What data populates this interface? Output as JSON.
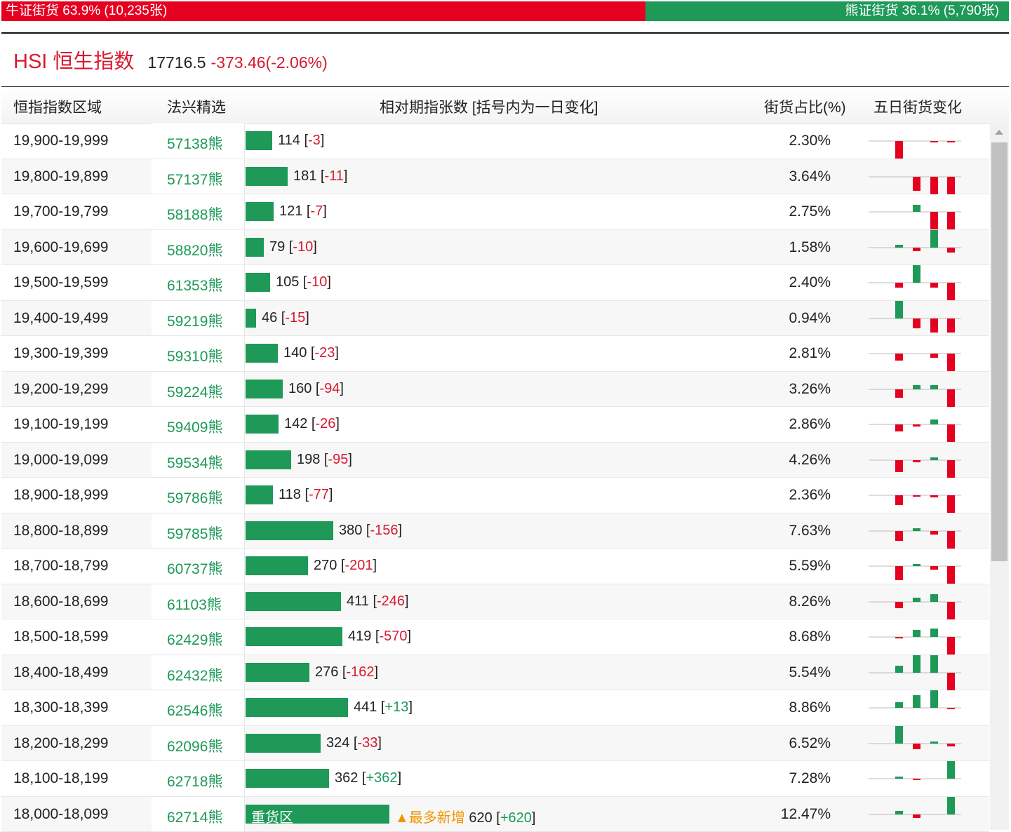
{
  "ratio": {
    "bull_label": "牛证街货 63.9% (10,235张)",
    "bear_label": "熊证街货 36.1% (5,790张)",
    "bull_pct": 63.9,
    "bull_color": "#e60020",
    "bear_color": "#1e9957"
  },
  "index": {
    "name": "HSI 恒生指数",
    "value": "17716.5",
    "change": "-373.46(-2.06%)"
  },
  "table": {
    "headers": {
      "range": "恒指指数区域",
      "pick": "法兴精选",
      "count": "相对期指张数 [括号内为一日变化]",
      "pct": "街货占比(%)",
      "five_day": "五日街货变化"
    },
    "rows": [
      {
        "range": "19,900-19,999",
        "pick": "57138熊",
        "count": "114",
        "change": "-3",
        "pct": "2.30%",
        "bar": 114,
        "spark": [
          0,
          -25,
          0,
          -2,
          -2
        ]
      },
      {
        "range": "19,800-19,899",
        "pick": "57137熊",
        "count": "181",
        "change": "-11",
        "pct": "3.64%",
        "bar": 181,
        "spark": [
          0,
          0,
          -20,
          -25,
          -25
        ]
      },
      {
        "range": "19,700-19,799",
        "pick": "58188熊",
        "count": "121",
        "change": "-7",
        "pct": "2.75%",
        "bar": 121,
        "spark": [
          0,
          0,
          10,
          -25,
          -25
        ]
      },
      {
        "range": "19,600-19,699",
        "pick": "58820熊",
        "count": "79",
        "change": "-10",
        "pct": "1.58%",
        "bar": 79,
        "spark": [
          0,
          4,
          -5,
          25,
          -7
        ]
      },
      {
        "range": "19,500-19,599",
        "pick": "61353熊",
        "count": "105",
        "change": "-10",
        "pct": "2.40%",
        "bar": 105,
        "spark": [
          0,
          -7,
          25,
          -7,
          -25
        ]
      },
      {
        "range": "19,400-19,499",
        "pick": "59219熊",
        "count": "46",
        "change": "-15",
        "pct": "0.94%",
        "bar": 46,
        "spark": [
          0,
          25,
          -14,
          -20,
          -20
        ]
      },
      {
        "range": "19,300-19,399",
        "pick": "59310熊",
        "count": "140",
        "change": "-23",
        "pct": "2.81%",
        "bar": 140,
        "spark": [
          0,
          -10,
          0,
          -6,
          -25
        ]
      },
      {
        "range": "19,200-19,299",
        "pick": "59224熊",
        "count": "160",
        "change": "-94",
        "pct": "3.26%",
        "bar": 160,
        "spark": [
          0,
          -12,
          6,
          6,
          -25
        ]
      },
      {
        "range": "19,100-19,199",
        "pick": "59409熊",
        "count": "142",
        "change": "-26",
        "pct": "2.86%",
        "bar": 142,
        "spark": [
          0,
          -10,
          -3,
          7,
          -25
        ]
      },
      {
        "range": "19,000-19,099",
        "pick": "59534熊",
        "count": "198",
        "change": "-95",
        "pct": "4.26%",
        "bar": 198,
        "spark": [
          0,
          -17,
          -3,
          4,
          -25
        ]
      },
      {
        "range": "18,900-18,999",
        "pick": "59786熊",
        "count": "118",
        "change": "-77",
        "pct": "2.36%",
        "bar": 118,
        "spark": [
          0,
          -14,
          -2,
          -3,
          -25
        ]
      },
      {
        "range": "18,800-18,899",
        "pick": "59785熊",
        "count": "380",
        "change": "-156",
        "pct": "7.63%",
        "bar": 380,
        "spark": [
          0,
          -14,
          4,
          -5,
          -25
        ]
      },
      {
        "range": "18,700-18,799",
        "pick": "60737熊",
        "count": "270",
        "change": "-201",
        "pct": "5.59%",
        "bar": 270,
        "spark": [
          0,
          -20,
          3,
          -5,
          -25
        ]
      },
      {
        "range": "18,600-18,699",
        "pick": "61103熊",
        "count": "411",
        "change": "-246",
        "pct": "8.26%",
        "bar": 411,
        "spark": [
          0,
          -9,
          6,
          11,
          -25
        ]
      },
      {
        "range": "18,500-18,599",
        "pick": "62429熊",
        "count": "419",
        "change": "-570",
        "pct": "8.68%",
        "bar": 419,
        "spark": [
          0,
          -2,
          10,
          12,
          -25
        ]
      },
      {
        "range": "18,400-18,499",
        "pick": "62432熊",
        "count": "276",
        "change": "-162",
        "pct": "5.54%",
        "bar": 276,
        "spark": [
          0,
          10,
          25,
          25,
          -25
        ]
      },
      {
        "range": "18,300-18,399",
        "pick": "62546熊",
        "count": "441",
        "change": "+13",
        "pct": "8.86%",
        "bar": 441,
        "spark": [
          0,
          8,
          18,
          25,
          -2
        ]
      },
      {
        "range": "18,200-18,299",
        "pick": "62096熊",
        "count": "324",
        "change": "-33",
        "pct": "6.52%",
        "bar": 324,
        "spark": [
          0,
          25,
          -8,
          3,
          -4
        ]
      },
      {
        "range": "18,100-18,199",
        "pick": "62718熊",
        "count": "362",
        "change": "+362",
        "pct": "7.28%",
        "bar": 362,
        "spark": [
          0,
          3,
          -2,
          0,
          25
        ]
      },
      {
        "range": "18,000-18,099",
        "pick": "62714熊",
        "count": "620",
        "change": "+620",
        "pct": "12.47%",
        "bar": 620,
        "bar_label": "重货区",
        "tag": "▲最多新增",
        "spark": [
          0,
          5,
          -5,
          0,
          25
        ]
      }
    ]
  },
  "colors": {
    "up": "#1e9957",
    "down": "#e60020",
    "accent": "#f29500"
  }
}
